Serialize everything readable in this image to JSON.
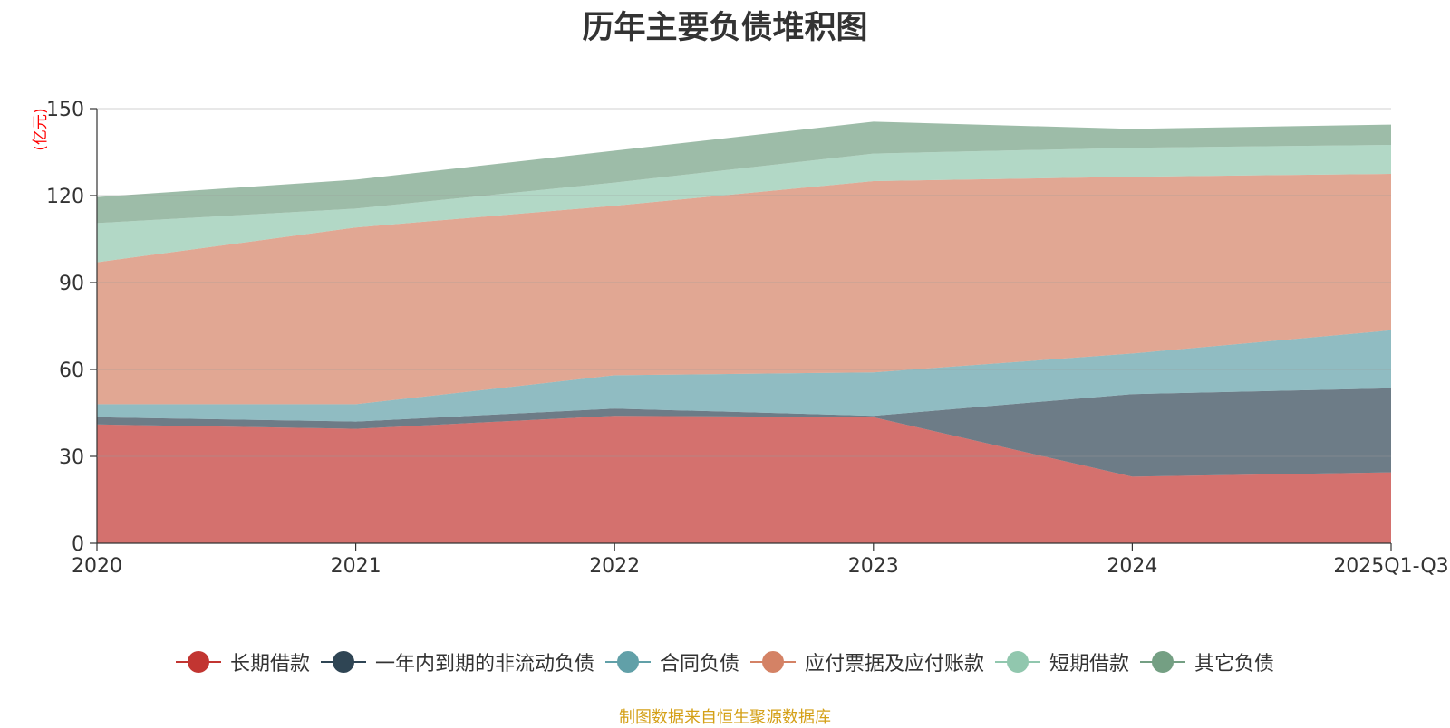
{
  "source_note": "制图数据来自恒生聚源数据库",
  "chart_data": {
    "type": "area",
    "stacked": true,
    "title": "历年主要负债堆积图",
    "ylabel": "(亿元)",
    "xlabel": "",
    "ylim": [
      0,
      150
    ],
    "yticks": [
      0,
      30,
      60,
      90,
      120,
      150
    ],
    "categories": [
      "2020",
      "2021",
      "2022",
      "2023",
      "2024",
      "2025Q1-Q3"
    ],
    "legend_position": "bottom",
    "series": [
      {
        "name": "长期借款",
        "color": "#c23531",
        "values": [
          41,
          39.5,
          44,
          43.5,
          23,
          24.5
        ]
      },
      {
        "name": "一年内到期的非流动负债",
        "color": "#2f4554",
        "values": [
          2.5,
          2.5,
          2.5,
          0.5,
          28.5,
          29
        ]
      },
      {
        "name": "合同负债",
        "color": "#61a0a8",
        "values": [
          4.5,
          6,
          11.5,
          15,
          14,
          20
        ]
      },
      {
        "name": "应付票据及应付账款",
        "color": "#d48265",
        "values": [
          49,
          61,
          58.5,
          66,
          61,
          54
        ]
      },
      {
        "name": "短期借款",
        "color": "#91c7ae",
        "values": [
          13.5,
          6.5,
          8,
          9.5,
          10,
          10
        ]
      },
      {
        "name": "其它负债",
        "color": "#749f83",
        "values": [
          9,
          10,
          11,
          11,
          6.5,
          7
        ]
      }
    ]
  }
}
